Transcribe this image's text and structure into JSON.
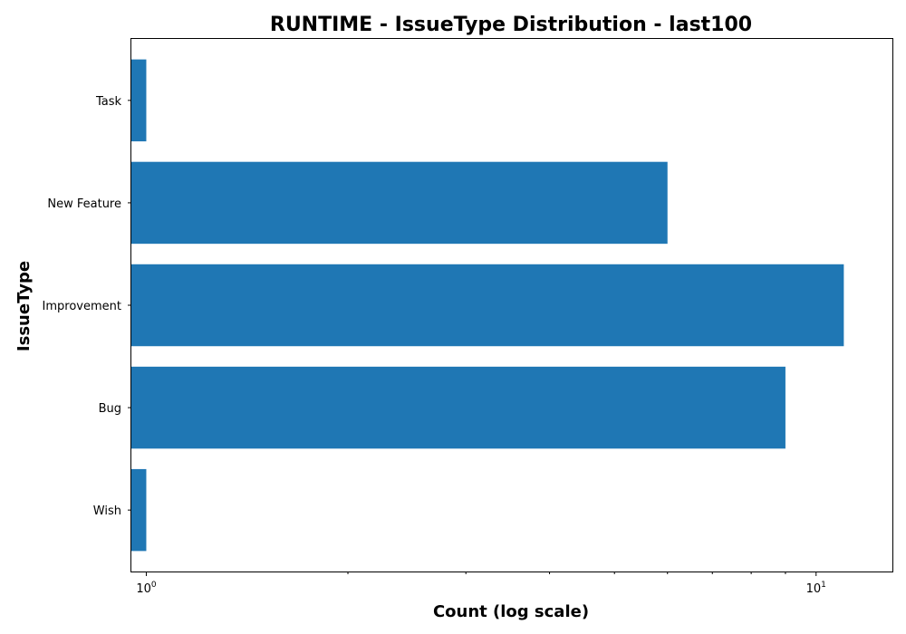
{
  "chart_data": {
    "type": "bar",
    "orientation": "horizontal",
    "title": "RUNTIME - IssueType Distribution - last100",
    "xlabel": "Count (log scale)",
    "ylabel": "IssueType",
    "x_scale": "log",
    "xlim": [
      0.95,
      13
    ],
    "x_major_ticks": [
      {
        "base": "10",
        "exp": "0",
        "value": 1
      },
      {
        "base": "10",
        "exp": "1",
        "value": 10
      }
    ],
    "categories": [
      "Task",
      "New Feature",
      "Improvement",
      "Bug",
      "Wish"
    ],
    "values": [
      1,
      6,
      11,
      9,
      1
    ],
    "bar_color": "#1f77b4",
    "grid": false,
    "legend": "none"
  }
}
